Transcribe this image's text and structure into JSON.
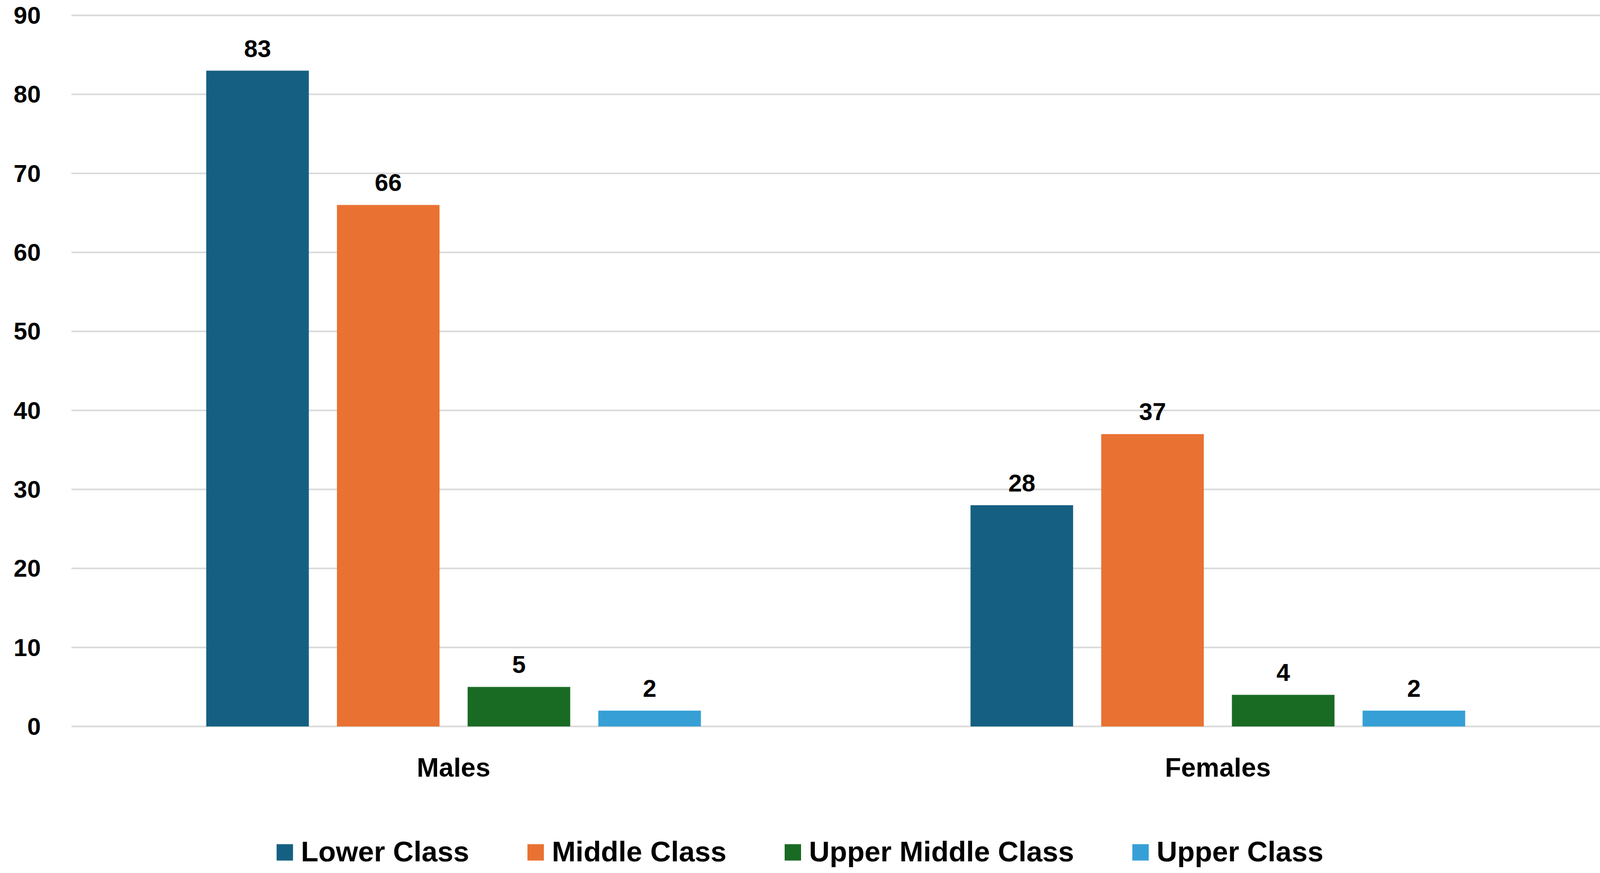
{
  "chart_data": {
    "type": "bar",
    "categories": [
      "Males",
      "Females"
    ],
    "series": [
      {
        "name": "Lower Class",
        "color": "#156082",
        "values": [
          83,
          28
        ]
      },
      {
        "name": "Middle Class",
        "color": "#E97132",
        "values": [
          66,
          37
        ]
      },
      {
        "name": "Upper Middle Class",
        "color": "#196B24",
        "values": [
          5,
          4
        ]
      },
      {
        "name": "Upper Class",
        "color": "#36A0D6",
        "values": [
          2,
          2
        ]
      }
    ],
    "ylim": [
      0,
      90
    ],
    "yticks": [
      0,
      10,
      20,
      30,
      40,
      50,
      60,
      70,
      80,
      90
    ],
    "grid": true,
    "legend": "bottom",
    "data_labels": true
  }
}
